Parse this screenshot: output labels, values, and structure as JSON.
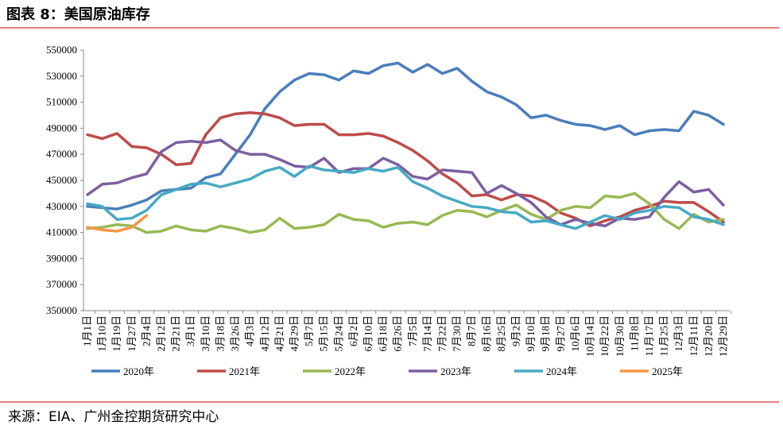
{
  "chart_data": {
    "type": "line",
    "title": "图表 8：美国原油库存",
    "source": "来源：EIA、广州金控期货研究中心",
    "categories": [
      "1月1日",
      "1月10日",
      "1月19日",
      "1月27日",
      "2月4日",
      "2月12日",
      "2月21日",
      "3月1日",
      "3月10日",
      "3月18日",
      "3月26日",
      "4月3日",
      "4月12日",
      "4月21日",
      "4月29日",
      "5月7日",
      "5月15日",
      "5月24日",
      "6月2日",
      "6月10日",
      "6月18日",
      "6月26日",
      "7月5日",
      "7月14日",
      "7月22日",
      "7月30日",
      "8月7日",
      "8月16日",
      "8月25日",
      "9月2日",
      "9月10日",
      "9月18日",
      "9月27日",
      "10月6日",
      "10月14日",
      "10月22日",
      "10月30日",
      "11月8日",
      "11月17日",
      "11月25日",
      "12月3日",
      "12月11日",
      "12月20日",
      "12月29日"
    ],
    "series": [
      {
        "name": "2020年",
        "color": "#4a7ebb",
        "values": [
          430000,
          429000,
          428000,
          431000,
          435000,
          442000,
          443000,
          444000,
          452000,
          455000,
          470000,
          485000,
          505000,
          518000,
          527000,
          532000,
          531000,
          527000,
          534000,
          532000,
          538000,
          540000,
          533000,
          539000,
          532000,
          536000,
          526000,
          518000,
          514000,
          508000,
          498000,
          500000,
          496000,
          493000,
          492000,
          489000,
          492000,
          485000,
          488000,
          489000,
          488000,
          503000,
          500000,
          493000
        ]
      },
      {
        "name": "2021年",
        "color": "#be4b48",
        "values": [
          485000,
          482000,
          486000,
          476000,
          475000,
          470000,
          462000,
          463000,
          485000,
          498000,
          501000,
          502000,
          501000,
          498000,
          492000,
          493000,
          493000,
          485000,
          485000,
          486000,
          484000,
          479000,
          473000,
          465000,
          455000,
          448000,
          438000,
          439000,
          435000,
          439000,
          438000,
          433000,
          425000,
          421000,
          415000,
          419000,
          422000,
          427000,
          430000,
          434000,
          433000,
          433000,
          426000,
          418000
        ]
      },
      {
        "name": "2022年",
        "color": "#98b954",
        "values": [
          413000,
          414000,
          416000,
          415000,
          410000,
          411000,
          415000,
          412000,
          411000,
          415000,
          413000,
          410000,
          412000,
          421000,
          413000,
          414000,
          416000,
          424000,
          420000,
          419000,
          414000,
          417000,
          418000,
          416000,
          423000,
          427000,
          426000,
          422000,
          427000,
          431000,
          424000,
          420000,
          427000,
          430000,
          429000,
          438000,
          437000,
          440000,
          432000,
          420000,
          413000,
          424000,
          418000,
          420000
        ]
      },
      {
        "name": "2023年",
        "color": "#7d5fa0",
        "values": [
          439000,
          447000,
          448000,
          452000,
          455000,
          472000,
          479000,
          480000,
          479000,
          481000,
          473000,
          470000,
          470000,
          466000,
          461000,
          460000,
          467000,
          456000,
          459000,
          459000,
          467000,
          462000,
          453000,
          451000,
          458000,
          457000,
          456000,
          440000,
          446000,
          440000,
          433000,
          422000,
          416000,
          420000,
          417000,
          415000,
          421000,
          420000,
          422000,
          437000,
          449000,
          441000,
          443000,
          431000
        ]
      },
      {
        "name": "2024年",
        "color": "#46aac5",
        "values": [
          432000,
          430000,
          420000,
          421000,
          427000,
          439000,
          443000,
          447000,
          448000,
          445000,
          448000,
          451000,
          457000,
          460000,
          453000,
          461000,
          458000,
          457000,
          456000,
          459000,
          457000,
          460000,
          449000,
          444000,
          438000,
          434000,
          430000,
          429000,
          426000,
          425000,
          418000,
          419000,
          416000,
          413000,
          418000,
          423000,
          420000,
          425000,
          427000,
          430000,
          429000,
          422000,
          420000,
          416000
        ]
      },
      {
        "name": "2025年",
        "color": "#f79646",
        "values": [
          414000,
          412000,
          411000,
          414000,
          423000,
          null,
          null,
          null,
          null,
          null,
          null,
          null,
          null,
          null,
          null,
          null,
          null,
          null,
          null,
          null,
          null,
          null,
          null,
          null,
          null,
          null,
          null,
          null,
          null,
          null,
          null,
          null,
          null,
          null,
          null,
          null,
          null,
          null,
          null,
          null,
          null,
          null,
          null,
          null
        ]
      }
    ],
    "ylim": [
      350000,
      550000
    ],
    "yticks": [
      350000,
      370000,
      390000,
      410000,
      430000,
      450000,
      470000,
      490000,
      510000,
      530000,
      550000
    ]
  }
}
